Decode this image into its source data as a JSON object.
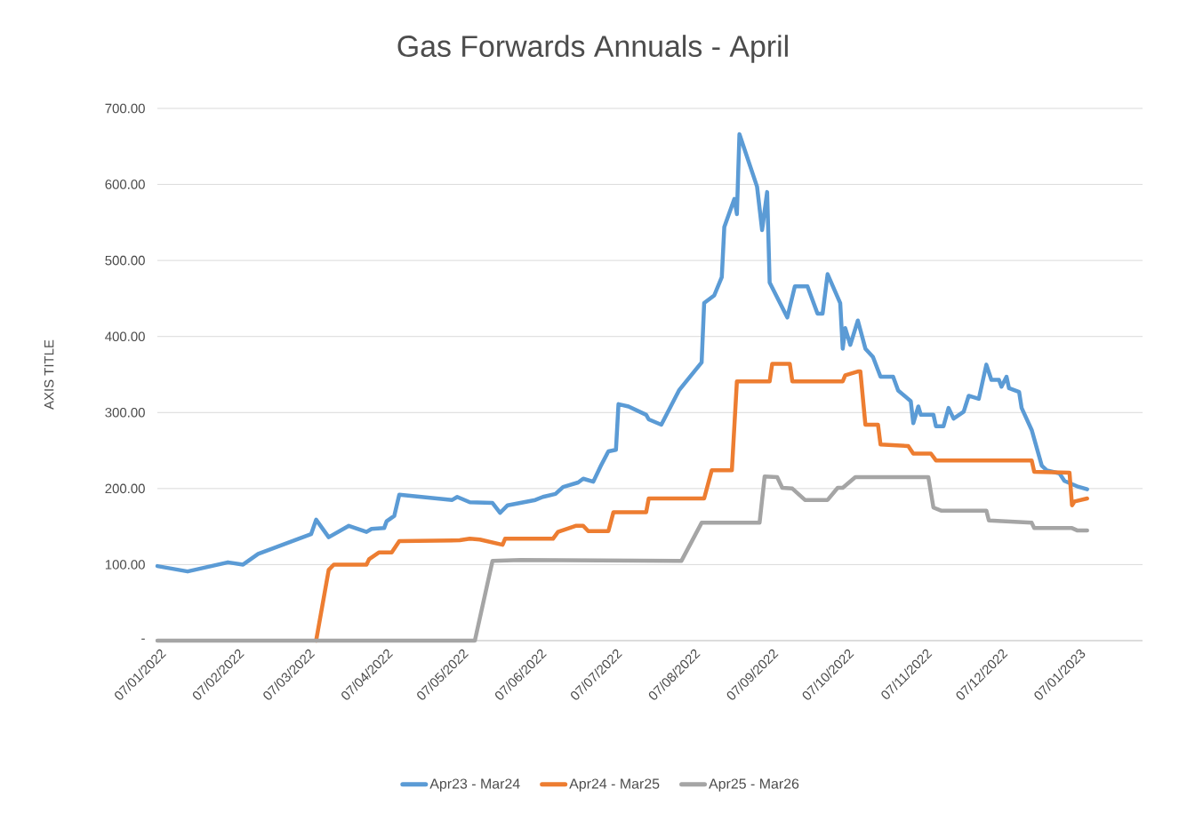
{
  "chart_data": {
    "type": "line",
    "title": "Gas Forwards Annuals - April",
    "ylabel": "AXIS TITLE",
    "xlim": [
      "2022-01-07",
      "2023-02-02"
    ],
    "xticks": [
      {
        "value": "2022-01-07",
        "label": "07/01/2022"
      },
      {
        "value": "2022-02-07",
        "label": "07/02/2022"
      },
      {
        "value": "2022-03-07",
        "label": "07/03/2022"
      },
      {
        "value": "2022-04-07",
        "label": "07/04/2022"
      },
      {
        "value": "2022-05-07",
        "label": "07/05/2022"
      },
      {
        "value": "2022-06-07",
        "label": "07/06/2022"
      },
      {
        "value": "2022-07-07",
        "label": "07/07/2022"
      },
      {
        "value": "2022-08-07",
        "label": "07/08/2022"
      },
      {
        "value": "2022-09-07",
        "label": "07/09/2022"
      },
      {
        "value": "2022-10-07",
        "label": "07/10/2022"
      },
      {
        "value": "2022-11-07",
        "label": "07/11/2022"
      },
      {
        "value": "2022-12-07",
        "label": "07/12/2022"
      },
      {
        "value": "2023-01-07",
        "label": "07/01/2023"
      }
    ],
    "ylim": [
      0,
      700
    ],
    "yticks": [
      {
        "value": 0,
        "label": "-"
      },
      {
        "value": 100,
        "label": "100.00"
      },
      {
        "value": 200,
        "label": "200.00"
      },
      {
        "value": 300,
        "label": "300.00"
      },
      {
        "value": 400,
        "label": "400.00"
      },
      {
        "value": 500,
        "label": "500.00"
      },
      {
        "value": 600,
        "label": "600.00"
      },
      {
        "value": 700,
        "label": "700.00"
      }
    ],
    "grid": "y",
    "legend": "bottom",
    "marker": "none",
    "series": [
      {
        "name": "Apr23 - Mar24",
        "color": "#5b9bd5",
        "x": [
          "2022-01-07",
          "2022-01-19",
          "2022-02-04",
          "2022-02-10",
          "2022-02-16",
          "2022-03-09",
          "2022-03-11",
          "2022-03-16",
          "2022-03-24",
          "2022-03-31",
          "2022-04-02",
          "2022-04-07",
          "2022-04-08",
          "2022-04-11",
          "2022-04-13",
          "2022-05-04",
          "2022-05-06",
          "2022-05-11",
          "2022-05-20",
          "2022-05-23",
          "2022-05-26",
          "2022-06-06",
          "2022-06-09",
          "2022-06-14",
          "2022-06-17",
          "2022-06-23",
          "2022-06-25",
          "2022-06-29",
          "2022-07-02",
          "2022-07-05",
          "2022-07-08",
          "2022-07-09",
          "2022-07-13",
          "2022-07-20",
          "2022-07-21",
          "2022-07-26",
          "2022-08-02",
          "2022-08-11",
          "2022-08-12",
          "2022-08-16",
          "2022-08-19",
          "2022-08-20",
          "2022-08-24",
          "2022-08-25",
          "2022-08-26",
          "2022-09-02",
          "2022-09-04",
          "2022-09-06",
          "2022-09-07",
          "2022-09-14",
          "2022-09-17",
          "2022-09-22",
          "2022-09-26",
          "2022-09-28",
          "2022-09-30",
          "2022-10-05",
          "2022-10-06",
          "2022-10-07",
          "2022-10-09",
          "2022-10-12",
          "2022-10-15",
          "2022-10-18",
          "2022-10-21",
          "2022-10-26",
          "2022-10-28",
          "2022-11-02",
          "2022-11-03",
          "2022-11-05",
          "2022-11-06",
          "2022-11-11",
          "2022-11-12",
          "2022-11-15",
          "2022-11-17",
          "2022-11-19",
          "2022-11-23",
          "2022-11-25",
          "2022-11-29",
          "2022-12-02",
          "2022-12-04",
          "2022-12-07",
          "2022-12-08",
          "2022-12-10",
          "2022-12-11",
          "2022-12-15",
          "2022-12-16",
          "2022-12-20",
          "2022-12-24",
          "2022-12-26",
          "2022-12-31",
          "2023-01-02",
          "2023-01-07",
          "2023-01-11"
        ],
        "values": [
          98,
          91,
          103,
          100,
          114,
          140,
          159,
          136,
          151,
          143,
          147,
          148,
          157,
          164,
          192,
          185,
          189,
          182,
          181,
          168,
          178,
          185,
          189,
          193,
          202,
          208,
          213,
          209,
          230,
          249,
          251,
          311,
          308,
          297,
          291,
          284,
          329,
          366,
          444,
          454,
          478,
          544,
          581,
          561,
          666,
          597,
          540,
          590,
          471,
          425,
          466,
          466,
          430,
          430,
          482,
          444,
          384,
          411,
          389,
          421,
          384,
          373,
          347,
          347,
          329,
          315,
          286,
          308,
          297,
          297,
          282,
          282,
          306,
          292,
          301,
          322,
          318,
          363,
          343,
          343,
          334,
          347,
          332,
          327,
          306,
          277,
          230,
          224,
          220,
          210,
          203,
          199
        ]
      },
      {
        "name": "Apr24 - Mar25",
        "color": "#ed7d31",
        "x": [
          "2022-03-11",
          "2022-03-16",
          "2022-03-18",
          "2022-03-31",
          "2022-04-01",
          "2022-04-05",
          "2022-04-10",
          "2022-04-13",
          "2022-05-07",
          "2022-05-11",
          "2022-05-15",
          "2022-05-24",
          "2022-05-25",
          "2022-06-13",
          "2022-06-15",
          "2022-06-22",
          "2022-06-25",
          "2022-06-27",
          "2022-07-05",
          "2022-07-07",
          "2022-07-20",
          "2022-07-21",
          "2022-08-12",
          "2022-08-15",
          "2022-08-23",
          "2022-08-25",
          "2022-09-07",
          "2022-09-08",
          "2022-09-15",
          "2022-09-16",
          "2022-10-06",
          "2022-10-07",
          "2022-10-12",
          "2022-10-13",
          "2022-10-15",
          "2022-10-20",
          "2022-10-21",
          "2022-11-01",
          "2022-11-03",
          "2022-11-10",
          "2022-11-12",
          "2022-12-20",
          "2022-12-21",
          "2023-01-04",
          "2023-01-05",
          "2023-01-06",
          "2023-01-11"
        ],
        "values": [
          0,
          93,
          100,
          100,
          107,
          116,
          116,
          131,
          132,
          134,
          133,
          126,
          134,
          134,
          143,
          151,
          151,
          144,
          144,
          169,
          169,
          187,
          187,
          224,
          224,
          341,
          341,
          364,
          364,
          341,
          341,
          349,
          354,
          354,
          284,
          284,
          258,
          256,
          246,
          246,
          237,
          237,
          222,
          221,
          178,
          183,
          187
        ]
      },
      {
        "name": "Apr25 - Mar26",
        "color": "#a5a5a5",
        "x": [
          "2022-01-07",
          "2022-05-13",
          "2022-05-20",
          "2022-05-31",
          "2022-08-03",
          "2022-08-11",
          "2022-09-03",
          "2022-09-05",
          "2022-09-10",
          "2022-09-12",
          "2022-09-16",
          "2022-09-21",
          "2022-09-30",
          "2022-10-04",
          "2022-10-06",
          "2022-10-11",
          "2022-11-09",
          "2022-11-11",
          "2022-11-14",
          "2022-12-02",
          "2022-12-03",
          "2022-12-20",
          "2022-12-21",
          "2023-01-05",
          "2023-01-07",
          "2023-01-11"
        ],
        "values": [
          0,
          0,
          105,
          106,
          105,
          155,
          155,
          216,
          215,
          201,
          200,
          185,
          185,
          201,
          201,
          215,
          215,
          175,
          171,
          171,
          158,
          155,
          148,
          148,
          145,
          145
        ]
      }
    ]
  }
}
